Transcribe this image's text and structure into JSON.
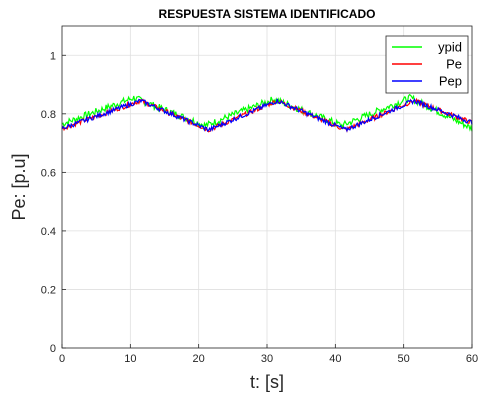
{
  "chart_data": {
    "type": "line",
    "title": "RESPUESTA SISTEMA IDENTIFICADO",
    "xlabel": "t: [s]",
    "ylabel": "Pe: [p.u]",
    "xlim": [
      0,
      60
    ],
    "ylim": [
      0,
      1.1
    ],
    "xticks": [
      "0",
      "10",
      "20",
      "30",
      "40",
      "50",
      "60"
    ],
    "yticks": [
      "0",
      "0.2",
      "0.4",
      "0.6",
      "0.8",
      "1"
    ],
    "grid": true,
    "legend_position": "top-right",
    "series": [
      {
        "name": "ypid",
        "color": "#00ff00",
        "x": [
          0,
          10.5,
          21,
          31,
          41,
          51,
          60
        ],
        "y": [
          0.765,
          0.855,
          0.76,
          0.85,
          0.76,
          0.855,
          0.75
        ]
      },
      {
        "name": "Pe",
        "color": "#ff0000",
        "x": [
          0,
          11.5,
          21.5,
          31.5,
          41.5,
          51.5,
          60
        ],
        "y": [
          0.75,
          0.845,
          0.745,
          0.845,
          0.745,
          0.845,
          0.77
        ]
      },
      {
        "name": "Pep",
        "color": "#0000ff",
        "x": [
          0,
          11.5,
          21.5,
          31.5,
          41.5,
          51.5,
          60
        ],
        "y": [
          0.75,
          0.845,
          0.745,
          0.845,
          0.745,
          0.845,
          0.77
        ]
      }
    ]
  }
}
